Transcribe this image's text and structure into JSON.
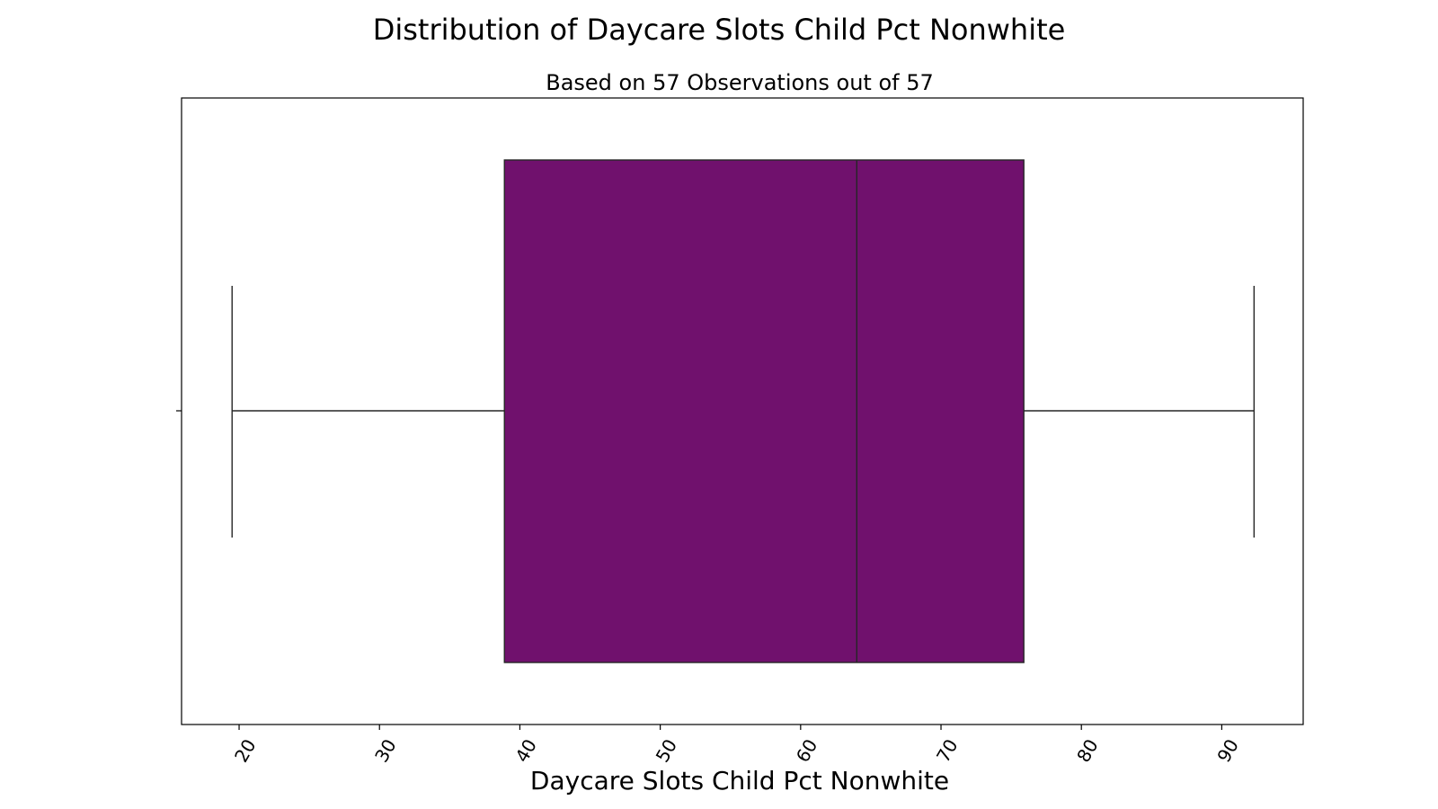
{
  "chart_data": {
    "type": "box",
    "title": "Distribution of Daycare Slots Child Pct Nonwhite",
    "subtitle": "Based on 57 Observations out of 57",
    "xlabel": "Daycare Slots Child Pct Nonwhite",
    "ylabel": "",
    "xlim": [
      15.9,
      95.8
    ],
    "xticks": [
      20,
      30,
      40,
      50,
      60,
      70,
      80,
      90
    ],
    "xtick_labels": [
      "20",
      "30",
      "40",
      "50",
      "60",
      "70",
      "80",
      "90"
    ],
    "box": {
      "whisker_low": 19.5,
      "q1": 38.9,
      "median": 64.0,
      "q3": 75.9,
      "whisker_high": 92.3
    },
    "n_observations": 57,
    "n_total": 57,
    "grid": false,
    "colors": {
      "box_fill": "#70116d",
      "lines": "#262626",
      "frame": "#000000"
    }
  }
}
